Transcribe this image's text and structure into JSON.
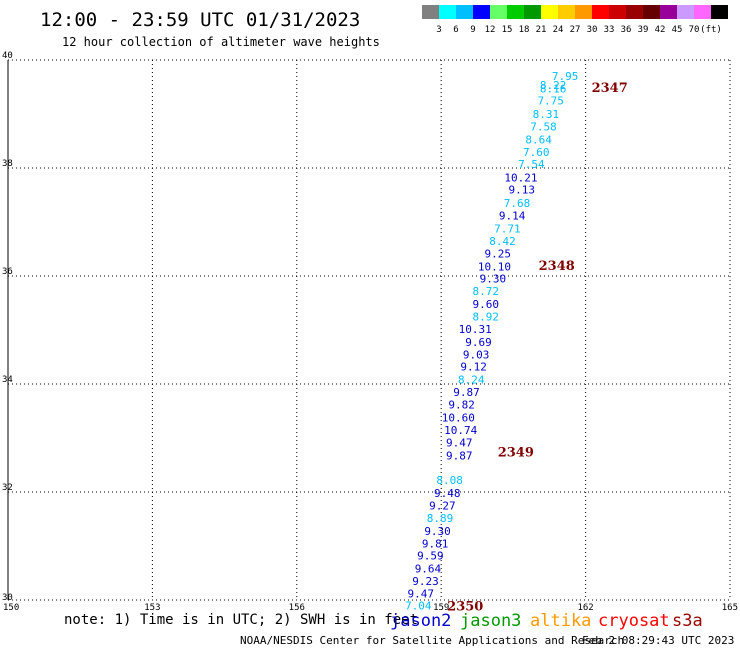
{
  "header": {
    "title": "12:00 - 23:59 UTC 01/31/2023",
    "subtitle": "12 hour collection of altimeter wave heights"
  },
  "colorbar": {
    "swatches": [
      "#808080",
      "#00ffff",
      "#00bfff",
      "#0000ff",
      "#66ff66",
      "#00cc00",
      "#009900",
      "#ffff00",
      "#ffcc00",
      "#ff9900",
      "#ff0000",
      "#cc0000",
      "#990000",
      "#660000",
      "#990099",
      "#cc99ff",
      "#ff66ff",
      "#000000"
    ],
    "labels": [
      "3",
      "6",
      "9",
      "12",
      "15",
      "18",
      "21",
      "24",
      "27",
      "30",
      "33",
      "36",
      "39",
      "42",
      "45",
      "70",
      "(ft)"
    ]
  },
  "chart_data": {
    "type": "scatter",
    "title": "12:00 - 23:59 UTC 01/31/2023",
    "subtitle": "12 hour collection of altimeter wave heights",
    "xlim": [
      150,
      165
    ],
    "ylim": [
      30,
      40
    ],
    "xticks": [
      "150",
      "153",
      "156",
      "159",
      "162",
      "165"
    ],
    "yticks": [
      "30",
      "32",
      "34",
      "36",
      "38",
      "40"
    ],
    "grid": true,
    "points": [
      {
        "x": 161.85,
        "y": 39.7,
        "v": "7.95",
        "c": "#00bfff"
      },
      {
        "x": 161.6,
        "y": 39.54,
        "v": "8.22",
        "c": "#00bfff"
      },
      {
        "x": 161.6,
        "y": 39.47,
        "v": "8.16",
        "c": "#00bfff"
      },
      {
        "x": 161.55,
        "y": 39.25,
        "v": "7.75",
        "c": "#00bfff"
      },
      {
        "x": 161.45,
        "y": 39.0,
        "v": "8.31",
        "c": "#00bfff"
      },
      {
        "x": 161.4,
        "y": 38.77,
        "v": "7.58",
        "c": "#00bfff"
      },
      {
        "x": 161.3,
        "y": 38.53,
        "v": "8.64",
        "c": "#00bfff"
      },
      {
        "x": 161.25,
        "y": 38.3,
        "v": "7.60",
        "c": "#00bfff"
      },
      {
        "x": 161.15,
        "y": 38.07,
        "v": "7.54",
        "c": "#00bfff"
      },
      {
        "x": 161.0,
        "y": 37.82,
        "v": "10.21",
        "c": "#0000cc"
      },
      {
        "x": 160.95,
        "y": 37.6,
        "v": "9.13",
        "c": "#0000cc"
      },
      {
        "x": 160.85,
        "y": 37.35,
        "v": "7.68",
        "c": "#00bfff"
      },
      {
        "x": 160.75,
        "y": 37.12,
        "v": "9.14",
        "c": "#0000cc"
      },
      {
        "x": 160.65,
        "y": 36.88,
        "v": "7.71",
        "c": "#00bfff"
      },
      {
        "x": 160.55,
        "y": 36.65,
        "v": "8.42",
        "c": "#00bfff"
      },
      {
        "x": 160.45,
        "y": 36.42,
        "v": "9.25",
        "c": "#0000cc"
      },
      {
        "x": 160.45,
        "y": 36.18,
        "v": "10.10",
        "c": "#0000cc"
      },
      {
        "x": 160.35,
        "y": 35.95,
        "v": "9.30",
        "c": "#0000cc"
      },
      {
        "x": 160.2,
        "y": 35.72,
        "v": "8.72",
        "c": "#00bfff"
      },
      {
        "x": 160.2,
        "y": 35.48,
        "v": "9.60",
        "c": "#0000cc"
      },
      {
        "x": 160.2,
        "y": 35.25,
        "v": "8.92",
        "c": "#00bfff"
      },
      {
        "x": 160.05,
        "y": 35.02,
        "v": "10.31",
        "c": "#0000cc"
      },
      {
        "x": 160.05,
        "y": 34.78,
        "v": "9.69",
        "c": "#0000cc"
      },
      {
        "x": 160.0,
        "y": 34.55,
        "v": "9.03",
        "c": "#0000cc"
      },
      {
        "x": 159.95,
        "y": 34.32,
        "v": "9.12",
        "c": "#0000cc"
      },
      {
        "x": 159.9,
        "y": 34.08,
        "v": "8.24",
        "c": "#00bfff"
      },
      {
        "x": 159.8,
        "y": 33.85,
        "v": "9.87",
        "c": "#0000cc"
      },
      {
        "x": 159.7,
        "y": 33.62,
        "v": "9.82",
        "c": "#0000cc"
      },
      {
        "x": 159.7,
        "y": 33.38,
        "v": "10.60",
        "c": "#0000cc"
      },
      {
        "x": 159.75,
        "y": 33.15,
        "v": "10.74",
        "c": "#0000cc"
      },
      {
        "x": 159.65,
        "y": 32.92,
        "v": "9.47",
        "c": "#0000cc"
      },
      {
        "x": 159.65,
        "y": 32.68,
        "v": "9.87",
        "c": "#0000cc"
      },
      {
        "x": 159.45,
        "y": 32.22,
        "v": "8.08",
        "c": "#00bfff"
      },
      {
        "x": 159.4,
        "y": 31.98,
        "v": "9.48",
        "c": "#0000cc"
      },
      {
        "x": 159.3,
        "y": 31.75,
        "v": "9.27",
        "c": "#0000cc"
      },
      {
        "x": 159.25,
        "y": 31.52,
        "v": "8.89",
        "c": "#00bfff"
      },
      {
        "x": 159.2,
        "y": 31.28,
        "v": "9.30",
        "c": "#0000cc"
      },
      {
        "x": 159.15,
        "y": 31.05,
        "v": "9.81",
        "c": "#0000cc"
      },
      {
        "x": 159.05,
        "y": 30.82,
        "v": "9.59",
        "c": "#0000cc"
      },
      {
        "x": 159.0,
        "y": 30.58,
        "v": "9.64",
        "c": "#0000cc"
      },
      {
        "x": 158.95,
        "y": 30.35,
        "v": "9.23",
        "c": "#0000cc"
      },
      {
        "x": 158.85,
        "y": 30.12,
        "v": "9.47",
        "c": "#0000cc"
      },
      {
        "x": 158.8,
        "y": 29.9,
        "v": "7.04",
        "c": "#00bfff"
      }
    ],
    "passes": [
      {
        "label": "2347",
        "x": 162.5,
        "y": 39.5
      },
      {
        "label": "2348",
        "x": 161.4,
        "y": 36.2
      },
      {
        "label": "2349",
        "x": 160.55,
        "y": 32.75
      },
      {
        "label": "2350",
        "x": 159.5,
        "y": 29.9
      }
    ]
  },
  "footer": {
    "note": "note: 1) Time is in UTC; 2) SWH is in feet",
    "legend": [
      {
        "name": "jason2",
        "color": "#0000cc"
      },
      {
        "name": "jason3",
        "color": "#009900"
      },
      {
        "name": "altika",
        "color": "#ff9900"
      },
      {
        "name": "cryosat",
        "color": "#ff0000"
      },
      {
        "name": "s3a",
        "color": "#990000"
      }
    ],
    "credit": "NOAA/NESDIS Center for Satellite Applications and Research",
    "timestamp": "Feb  2 08:29:43 UTC 2023"
  }
}
